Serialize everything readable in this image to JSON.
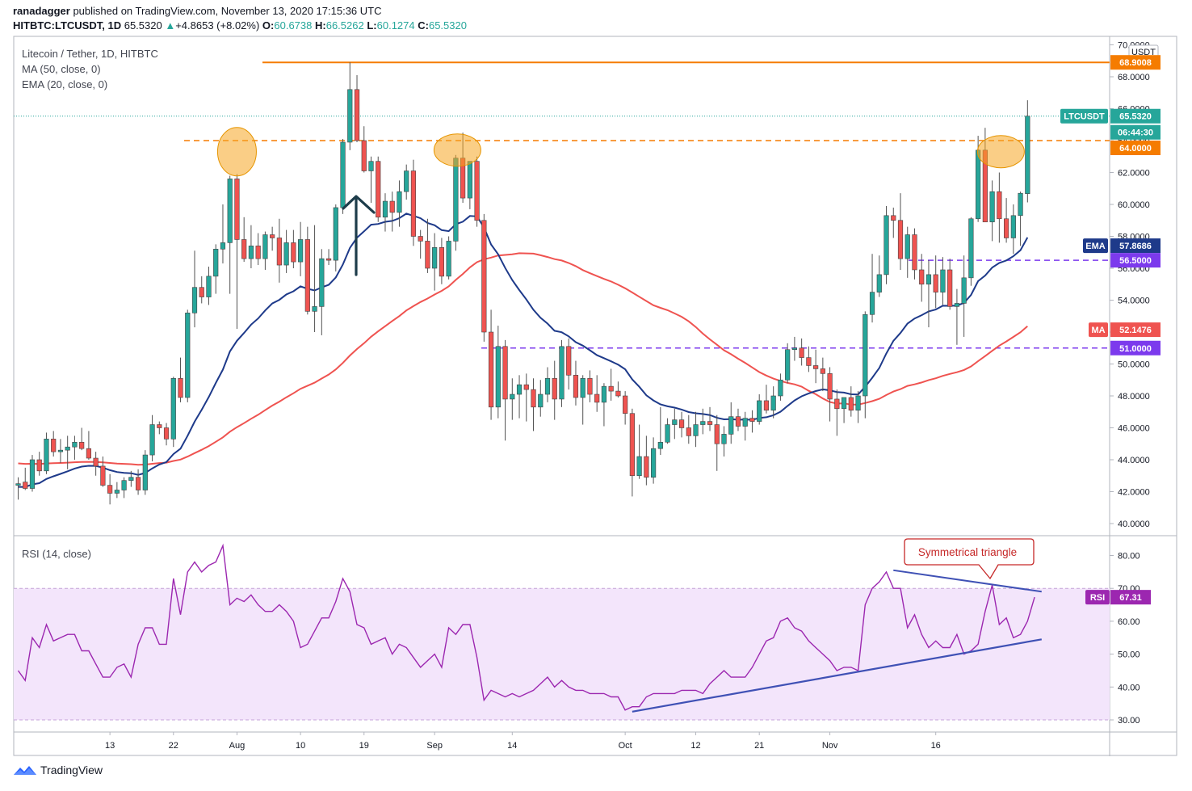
{
  "header": {
    "user": "ranadagger",
    "published_text": "published on TradingView.com, November 13, 2020 17:15:36 UTC",
    "symbol": "HITBTC:LTCUSDT, 1D",
    "last": "65.5320",
    "change": "+4.8653 (+8.02%)",
    "o_label": "O:",
    "o": "60.6738",
    "h_label": "H:",
    "h": "66.5262",
    "l_label": "L:",
    "l": "60.1274",
    "c_label": "C:",
    "c": "65.5320",
    "up_arrow": "▲"
  },
  "legend": {
    "line1": "Litecoin / Tether, 1D, HITBTC",
    "line2": "MA (50, close, 0)",
    "line3": "EMA (20, close, 0)",
    "rsi": "RSI (14, close)"
  },
  "footer": {
    "brand": "TradingView"
  },
  "colors": {
    "up": "#26a69a",
    "down": "#ef5350",
    "ema": "#1e3a8a",
    "ma": "#ef5350",
    "rsi": "#9c27b0",
    "resistance": "#f57c00",
    "support": "#7c3aed",
    "trend": "#3f51b5"
  },
  "chart_data": [
    {
      "type": "candlestick",
      "title": "Litecoin / Tether, 1D, HITBTC",
      "unit": "USDT",
      "ylim": [
        39.5,
        70.5
      ],
      "y_ticks": [
        "40.0000",
        "42.0000",
        "44.0000",
        "46.0000",
        "48.0000",
        "50.0000",
        "52.0000",
        "54.0000",
        "56.0000",
        "58.0000",
        "60.0000",
        "62.0000",
        "64.0000",
        "66.0000",
        "68.0000",
        "70.0000"
      ],
      "x_ticks": [
        "13",
        "22",
        "Aug",
        "10",
        "19",
        "Sep",
        "14",
        "Oct",
        "12",
        "21",
        "Nov",
        "16"
      ],
      "x_tick_index": [
        13,
        22,
        31,
        40,
        49,
        59,
        70,
        86,
        96,
        105,
        115,
        130
      ],
      "candles_ohlc": [
        [
          42.4,
          42.9,
          41.5,
          42.5
        ],
        [
          42.6,
          43.5,
          42.1,
          42.2
        ],
        [
          42.2,
          44.3,
          42.0,
          44.0
        ],
        [
          44.0,
          44.5,
          43.0,
          43.3
        ],
        [
          43.3,
          45.7,
          43.1,
          45.3
        ],
        [
          45.3,
          45.8,
          44.2,
          44.5
        ],
        [
          44.5,
          45.3,
          43.8,
          44.6
        ],
        [
          44.6,
          45.5,
          43.4,
          44.8
        ],
        [
          44.8,
          45.5,
          44.0,
          45.1
        ],
        [
          45.1,
          46.0,
          44.6,
          44.7
        ],
        [
          44.7,
          45.8,
          44.0,
          44.1
        ],
        [
          44.1,
          44.5,
          43.0,
          43.6
        ],
        [
          43.6,
          44.2,
          42.3,
          42.4
        ],
        [
          42.4,
          43.1,
          41.2,
          41.9
        ],
        [
          41.9,
          42.6,
          41.6,
          42.1
        ],
        [
          42.1,
          42.9,
          41.6,
          42.7
        ],
        [
          42.7,
          43.3,
          42.3,
          42.9
        ],
        [
          42.9,
          43.4,
          41.8,
          42.1
        ],
        [
          42.1,
          44.6,
          41.8,
          44.3
        ],
        [
          44.3,
          46.8,
          43.9,
          46.2
        ],
        [
          46.2,
          46.4,
          45.6,
          46.0
        ],
        [
          46.0,
          46.3,
          44.9,
          45.3
        ],
        [
          45.3,
          49.2,
          44.8,
          49.1
        ],
        [
          49.1,
          50.4,
          47.6,
          47.9
        ],
        [
          47.9,
          53.4,
          47.6,
          53.2
        ],
        [
          53.2,
          57.1,
          52.3,
          54.8
        ],
        [
          54.8,
          55.5,
          53.8,
          54.2
        ],
        [
          54.2,
          56.1,
          53.7,
          55.5
        ],
        [
          55.5,
          57.5,
          54.4,
          57.2
        ],
        [
          57.2,
          60.0,
          56.3,
          57.6
        ],
        [
          57.6,
          61.8,
          54.4,
          61.6
        ],
        [
          61.6,
          61.9,
          52.2,
          57.8
        ],
        [
          57.8,
          59.2,
          56.4,
          56.6
        ],
        [
          56.6,
          58.7,
          56.0,
          57.4
        ],
        [
          57.4,
          58.2,
          56.2,
          56.6
        ],
        [
          56.6,
          58.3,
          55.9,
          58.1
        ],
        [
          58.1,
          58.6,
          57.1,
          57.9
        ],
        [
          57.9,
          59.1,
          55.1,
          56.2
        ],
        [
          56.2,
          58.4,
          55.7,
          57.6
        ],
        [
          57.6,
          58.4,
          56.0,
          56.4
        ],
        [
          56.4,
          58.9,
          55.5,
          57.8
        ],
        [
          57.8,
          58.6,
          53.1,
          53.3
        ],
        [
          53.3,
          58.7,
          52.0,
          53.6
        ],
        [
          53.6,
          57.2,
          51.8,
          56.6
        ],
        [
          56.6,
          57.2,
          56.2,
          56.5
        ],
        [
          56.5,
          60.0,
          55.8,
          59.8
        ],
        [
          59.8,
          64.1,
          59.4,
          63.9
        ],
        [
          63.9,
          68.9,
          63.4,
          67.2
        ],
        [
          67.2,
          68.1,
          63.9,
          64.0
        ],
        [
          64.0,
          64.9,
          62.0,
          62.1
        ],
        [
          62.1,
          63.0,
          60.1,
          62.7
        ],
        [
          62.7,
          63.0,
          58.9,
          59.2
        ],
        [
          59.2,
          60.7,
          58.3,
          60.2
        ],
        [
          60.2,
          60.8,
          58.3,
          59.5
        ],
        [
          59.5,
          61.5,
          58.6,
          60.8
        ],
        [
          60.8,
          62.5,
          60.3,
          62.1
        ],
        [
          62.1,
          62.8,
          57.4,
          58.0
        ],
        [
          58.0,
          58.4,
          56.6,
          57.7
        ],
        [
          57.7,
          59.1,
          55.7,
          56.0
        ],
        [
          56.0,
          58.2,
          54.6,
          57.3
        ],
        [
          57.3,
          57.9,
          55.0,
          55.5
        ],
        [
          55.5,
          58.0,
          55.3,
          57.7
        ],
        [
          57.7,
          63.1,
          57.1,
          62.9
        ],
        [
          62.9,
          64.5,
          60.1,
          60.4
        ],
        [
          60.4,
          62.5,
          59.7,
          62.7
        ],
        [
          62.7,
          63.0,
          58.6,
          59.0
        ],
        [
          59.0,
          59.4,
          51.4,
          52.0
        ],
        [
          52.0,
          53.4,
          46.5,
          47.3
        ],
        [
          47.3,
          52.4,
          46.6,
          51.1
        ],
        [
          51.1,
          51.5,
          45.2,
          47.8
        ],
        [
          47.8,
          49.1,
          46.5,
          48.1
        ],
        [
          48.1,
          49.3,
          46.6,
          48.7
        ],
        [
          48.7,
          49.4,
          46.4,
          48.4
        ],
        [
          48.4,
          49.1,
          45.8,
          47.3
        ],
        [
          47.3,
          49.0,
          46.7,
          48.1
        ],
        [
          48.1,
          49.8,
          47.6,
          49.1
        ],
        [
          49.1,
          50.2,
          46.5,
          47.8
        ],
        [
          47.8,
          51.5,
          47.3,
          51.1
        ],
        [
          51.1,
          51.6,
          48.4,
          49.3
        ],
        [
          49.3,
          50.2,
          47.4,
          47.9
        ],
        [
          47.9,
          49.3,
          46.2,
          49.1
        ],
        [
          49.1,
          49.6,
          47.6,
          48.1
        ],
        [
          48.1,
          49.3,
          47.0,
          47.6
        ],
        [
          47.6,
          48.8,
          46.1,
          48.6
        ],
        [
          48.6,
          49.7,
          47.7,
          48.3
        ],
        [
          48.3,
          48.9,
          47.9,
          48.0
        ],
        [
          48.0,
          48.3,
          46.2,
          46.9
        ],
        [
          46.9,
          47.2,
          41.7,
          43.0
        ],
        [
          43.0,
          46.2,
          42.8,
          44.2
        ],
        [
          44.2,
          45.5,
          42.4,
          42.9
        ],
        [
          42.9,
          45.4,
          42.5,
          44.7
        ],
        [
          44.7,
          47.3,
          44.3,
          45.1
        ],
        [
          45.1,
          46.6,
          45.0,
          46.2
        ],
        [
          46.2,
          47.2,
          45.3,
          46.5
        ],
        [
          46.5,
          47.0,
          45.4,
          46.0
        ],
        [
          46.0,
          46.8,
          45.0,
          45.5
        ],
        [
          45.5,
          47.0,
          44.8,
          46.2
        ],
        [
          46.2,
          47.2,
          45.6,
          46.4
        ],
        [
          46.4,
          47.3,
          45.8,
          46.2
        ],
        [
          46.2,
          46.8,
          43.3,
          45.0
        ],
        [
          45.0,
          46.1,
          44.2,
          45.6
        ],
        [
          45.6,
          47.6,
          45.0,
          46.7
        ],
        [
          46.7,
          47.2,
          45.8,
          46.1
        ],
        [
          46.1,
          47.0,
          45.2,
          46.6
        ],
        [
          46.6,
          47.1,
          45.7,
          46.4
        ],
        [
          46.4,
          48.1,
          46.2,
          47.7
        ],
        [
          47.7,
          48.7,
          46.9,
          47.1
        ],
        [
          47.1,
          48.6,
          46.6,
          48.0
        ],
        [
          48.0,
          49.4,
          47.7,
          49.0
        ],
        [
          49.0,
          51.3,
          48.8,
          50.9
        ],
        [
          50.9,
          51.7,
          50.2,
          51.0
        ],
        [
          51.0,
          51.6,
          49.9,
          50.4
        ],
        [
          50.4,
          51.1,
          49.5,
          49.9
        ],
        [
          49.9,
          50.9,
          48.8,
          49.7
        ],
        [
          49.7,
          50.4,
          48.3,
          49.4
        ],
        [
          49.4,
          49.8,
          46.4,
          47.8
        ],
        [
          47.8,
          48.4,
          45.5,
          47.2
        ],
        [
          47.2,
          47.8,
          46.3,
          47.9
        ],
        [
          47.9,
          48.6,
          46.7,
          47.1
        ],
        [
          47.1,
          48.3,
          46.3,
          48.0
        ],
        [
          48.0,
          53.3,
          46.6,
          53.1
        ],
        [
          53.1,
          56.9,
          52.6,
          54.5
        ],
        [
          54.5,
          56.8,
          54.2,
          55.6
        ],
        [
          55.6,
          59.9,
          55.0,
          59.3
        ],
        [
          59.3,
          59.8,
          57.9,
          59.0
        ],
        [
          59.0,
          60.7,
          55.9,
          56.6
        ],
        [
          56.6,
          58.6,
          55.4,
          58.1
        ],
        [
          58.1,
          58.5,
          55.3,
          55.9
        ],
        [
          55.9,
          56.9,
          53.9,
          55.0
        ],
        [
          55.0,
          56.5,
          52.3,
          55.6
        ],
        [
          55.6,
          56.8,
          53.5,
          54.5
        ],
        [
          54.5,
          56.7,
          53.7,
          55.9
        ],
        [
          55.9,
          56.6,
          53.4,
          53.6
        ],
        [
          53.6,
          54.7,
          51.2,
          53.8
        ],
        [
          53.8,
          56.8,
          51.7,
          55.4
        ],
        [
          55.4,
          59.2,
          54.9,
          59.1
        ],
        [
          59.1,
          64.3,
          58.9,
          63.4
        ],
        [
          63.4,
          64.8,
          58.9,
          58.9
        ],
        [
          58.9,
          61.5,
          57.7,
          60.8
        ],
        [
          60.8,
          62.0,
          57.6,
          59.1
        ],
        [
          59.1,
          60.4,
          57.6,
          57.9
        ],
        [
          57.9,
          60.0,
          56.9,
          59.3
        ],
        [
          59.3,
          60.8,
          57.4,
          60.7
        ],
        [
          60.6738,
          66.5262,
          60.1274,
          65.532
        ]
      ],
      "series": [
        {
          "name": "EMA (20, close, 0)",
          "values_note": "20-period exponential moving average of close",
          "last": "57.8686"
        },
        {
          "name": "MA (50, close, 0)",
          "values_note": "50-period simple moving average of close",
          "last": "52.1476"
        }
      ],
      "annotations": {
        "resistance_solid": 68.9008,
        "resistance_dashed": 64.0,
        "support_dashed_1": 56.5,
        "support_dashed_2": 51.0,
        "circled_highs_index": [
          31,
          62,
          139
        ],
        "arrow": "upward arrow near mid-August high"
      },
      "price_tags": [
        {
          "label": "",
          "value": "68.9008",
          "color": "#f57c00"
        },
        {
          "label": "LTCUSDT",
          "value": "65.5320",
          "color": "#26a69a"
        },
        {
          "label": "",
          "value": "06:44:30",
          "color": "#26a69a"
        },
        {
          "label": "",
          "value": "64.0000",
          "color": "#f57c00"
        },
        {
          "label": "EMA",
          "value": "57.8686",
          "color": "#1e3a8a"
        },
        {
          "label": "",
          "value": "56.5000",
          "color": "#7c3aed"
        },
        {
          "label": "MA",
          "value": "52.1476",
          "color": "#ef5350"
        },
        {
          "label": "",
          "value": "51.0000",
          "color": "#7c3aed"
        }
      ],
      "currency_badge": "USDT"
    },
    {
      "type": "line",
      "title": "RSI (14, close)",
      "ylim": [
        27.5,
        84
      ],
      "y_ticks": [
        "30.00",
        "40.00",
        "50.00",
        "60.00",
        "70.00",
        "80.00"
      ],
      "band": [
        30,
        70
      ],
      "rsi_values": [
        45,
        42,
        55,
        52,
        59,
        54,
        55,
        56,
        56,
        51,
        51,
        47,
        43,
        43,
        46,
        47,
        43,
        53,
        58,
        58,
        53,
        53,
        73,
        62,
        75,
        78,
        75,
        77,
        78,
        83,
        65,
        67,
        66,
        68,
        65,
        63,
        63,
        65,
        63,
        60,
        52,
        53,
        57,
        61,
        61,
        66,
        73,
        69,
        59,
        58,
        53,
        54,
        55,
        50,
        53,
        52,
        49,
        46,
        48,
        50,
        46,
        58,
        56,
        59,
        59,
        49,
        36,
        39,
        38,
        37,
        38,
        37,
        38,
        39,
        41,
        43,
        40,
        42,
        40,
        39,
        39,
        38,
        38,
        38,
        37,
        37,
        33,
        34,
        34,
        37,
        38,
        38,
        38,
        38,
        39,
        39,
        39,
        38,
        41,
        43,
        45,
        43,
        43,
        43,
        46,
        50,
        54,
        55,
        60,
        61,
        58,
        57,
        54,
        52,
        50,
        48,
        45,
        46,
        46,
        45,
        65,
        70,
        72,
        75,
        70,
        70,
        58,
        62,
        56,
        52,
        54,
        52,
        52,
        56,
        50,
        51,
        53,
        63,
        71,
        59,
        61,
        55,
        56,
        60,
        67.31
      ],
      "trendline_upper": {
        "from_index": 124,
        "from_value": 75.5,
        "to_index": 145,
        "to_value": 69.0
      },
      "trendline_lower": {
        "from_index": 87,
        "from_value": 32.5,
        "to_index": 145,
        "to_value": 54.5
      },
      "callout": "Symmetrical triangle",
      "last_tag": {
        "label": "RSI",
        "value": "67.31"
      }
    }
  ]
}
